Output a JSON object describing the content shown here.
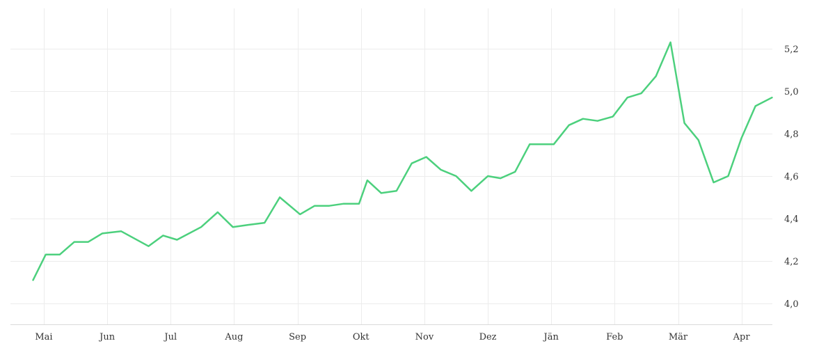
{
  "chart_data": {
    "type": "line",
    "x_tick_labels": [
      "Mai",
      "Jun",
      "Jul",
      "Aug",
      "Sep",
      "Okt",
      "Nov",
      "Dez",
      "Jän",
      "Feb",
      "Mär",
      "Apr"
    ],
    "y_tick_labels": [
      "4,0",
      "4,2",
      "4,4",
      "4,6",
      "4,8",
      "5,0",
      "5,2"
    ],
    "y_ticks": [
      4.0,
      4.2,
      4.4,
      4.6,
      4.8,
      5.0,
      5.2
    ],
    "ylim": [
      3.92,
      5.4
    ],
    "xlim": [
      -0.17,
      11.48
    ],
    "grid": true,
    "y_axis_side": "right",
    "title": "",
    "xlabel": "",
    "ylabel": "",
    "series": [
      {
        "color": "#4cd07d",
        "x": [
          -0.17,
          0.03,
          0.25,
          0.48,
          0.7,
          0.92,
          1.22,
          1.65,
          1.88,
          2.1,
          2.48,
          2.74,
          2.98,
          3.22,
          3.48,
          3.72,
          4.04,
          4.27,
          4.5,
          4.73,
          4.97,
          5.1,
          5.32,
          5.56,
          5.8,
          6.03,
          6.26,
          6.5,
          6.74,
          7.0,
          7.2,
          7.43,
          7.66,
          7.9,
          8.04,
          8.28,
          8.5,
          8.73,
          8.97,
          9.2,
          9.42,
          9.65,
          9.88,
          10.1,
          10.32,
          10.56,
          10.79,
          11.0,
          11.22,
          11.48
        ],
        "y": [
          4.11,
          4.23,
          4.23,
          4.29,
          4.29,
          4.33,
          4.34,
          4.27,
          4.32,
          4.3,
          4.36,
          4.43,
          4.36,
          4.37,
          4.38,
          4.5,
          4.42,
          4.46,
          4.46,
          4.47,
          4.47,
          4.58,
          4.52,
          4.53,
          4.66,
          4.69,
          4.63,
          4.6,
          4.53,
          4.6,
          4.59,
          4.62,
          4.75,
          4.75,
          4.75,
          4.84,
          4.87,
          4.86,
          4.88,
          4.97,
          4.99,
          5.07,
          5.23,
          4.85,
          4.77,
          4.57,
          4.6,
          4.78,
          4.93,
          4.97
        ]
      }
    ]
  }
}
